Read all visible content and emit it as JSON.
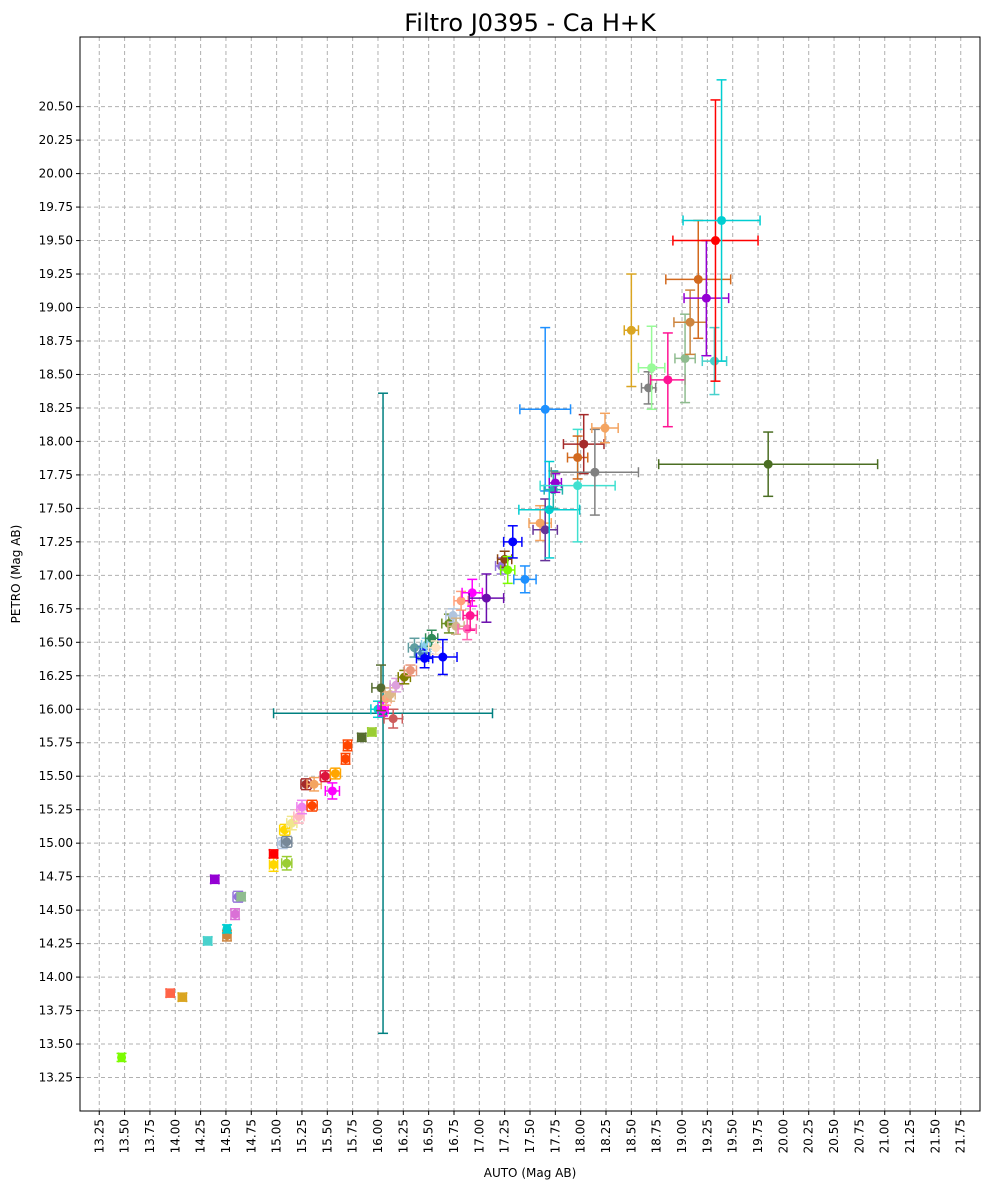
{
  "chart_data": {
    "type": "scatter",
    "title": "Filtro J0395 - Ca H+K",
    "xlabel": "AUTO (Mag AB)",
    "ylabel": "PETRO (Mag AB)",
    "xlim": [
      13.06,
      21.94
    ],
    "ylim": [
      13.0,
      21.02
    ],
    "xticks": [
      13.25,
      13.5,
      13.75,
      14.0,
      14.25,
      14.5,
      14.75,
      15.0,
      15.25,
      15.5,
      15.75,
      16.0,
      16.25,
      16.5,
      16.75,
      17.0,
      17.25,
      17.5,
      17.75,
      18.0,
      18.25,
      18.5,
      18.75,
      19.0,
      19.25,
      19.5,
      19.75,
      20.0,
      20.25,
      20.5,
      20.75,
      21.0,
      21.25,
      21.5,
      21.75
    ],
    "xtick_labels": [
      "13.25",
      "13.50",
      "13.75",
      "14.00",
      "14.25",
      "14.50",
      "14.75",
      "15.00",
      "15.25",
      "15.50",
      "15.75",
      "16.00",
      "16.25",
      "16.50",
      "16.75",
      "17.00",
      "17.25",
      "17.50",
      "17.75",
      "18.00",
      "18.25",
      "18.50",
      "18.75",
      "19.00",
      "19.25",
      "19.50",
      "19.75",
      "20.00",
      "20.25",
      "20.50",
      "20.75",
      "21.00",
      "21.25",
      "21.50",
      "21.75"
    ],
    "yticks": [
      13.25,
      13.5,
      13.75,
      14.0,
      14.25,
      14.5,
      14.75,
      15.0,
      15.25,
      15.5,
      15.75,
      16.0,
      16.25,
      16.5,
      16.75,
      17.0,
      17.25,
      17.5,
      17.75,
      18.0,
      18.25,
      18.5,
      18.75,
      19.0,
      19.25,
      19.5,
      19.75,
      20.0,
      20.25,
      20.5
    ],
    "ytick_labels": [
      "13.25",
      "13.50",
      "13.75",
      "14.00",
      "14.25",
      "14.50",
      "14.75",
      "15.00",
      "15.25",
      "15.50",
      "15.75",
      "16.00",
      "16.25",
      "16.50",
      "16.75",
      "17.00",
      "17.25",
      "17.50",
      "17.75",
      "18.00",
      "18.25",
      "18.50",
      "18.75",
      "19.00",
      "19.25",
      "19.50",
      "19.75",
      "20.00",
      "20.25",
      "20.50"
    ],
    "grid": true,
    "grid_style": "dashed",
    "points": [
      {
        "x": 13.47,
        "y": 13.4,
        "xerr": 0.03,
        "yerr": 0.03,
        "color": "#7cfc00"
      },
      {
        "x": 13.95,
        "y": 13.88,
        "xerr": 0.04,
        "yerr": 0.03,
        "color": "#ff6347"
      },
      {
        "x": 14.07,
        "y": 13.85,
        "xerr": 0.04,
        "yerr": 0.03,
        "color": "#daa520"
      },
      {
        "x": 14.32,
        "y": 14.27,
        "xerr": 0.04,
        "yerr": 0.03,
        "color": "#48d1cc"
      },
      {
        "x": 14.39,
        "y": 14.73,
        "xerr": 0.04,
        "yerr": 0.03,
        "color": "#9400d3"
      },
      {
        "x": 14.51,
        "y": 14.31,
        "xerr": 0.04,
        "yerr": 0.04,
        "color": "#cd853f"
      },
      {
        "x": 14.51,
        "y": 14.36,
        "xerr": 0.03,
        "yerr": 0.03,
        "color": "#00ced1"
      },
      {
        "x": 14.59,
        "y": 14.47,
        "xerr": 0.04,
        "yerr": 0.04,
        "color": "#da70d6"
      },
      {
        "x": 14.62,
        "y": 14.6,
        "xerr": 0.05,
        "yerr": 0.04,
        "color": "#9370db"
      },
      {
        "x": 14.65,
        "y": 14.6,
        "xerr": 0.04,
        "yerr": 0.03,
        "color": "#8fbc8f"
      },
      {
        "x": 14.97,
        "y": 14.84,
        "xerr": 0.04,
        "yerr": 0.05,
        "color": "#ffd700"
      },
      {
        "x": 14.97,
        "y": 14.92,
        "xerr": 0.04,
        "yerr": 0.03,
        "color": "#ff0000"
      },
      {
        "x": 15.06,
        "y": 15.0,
        "xerr": 0.05,
        "yerr": 0.04,
        "color": "#b0c4de"
      },
      {
        "x": 15.1,
        "y": 15.01,
        "xerr": 0.05,
        "yerr": 0.04,
        "color": "#778899"
      },
      {
        "x": 15.1,
        "y": 14.85,
        "xerr": 0.05,
        "yerr": 0.05,
        "color": "#9acd32"
      },
      {
        "x": 15.08,
        "y": 15.1,
        "xerr": 0.05,
        "yerr": 0.04,
        "color": "#ffd700"
      },
      {
        "x": 15.15,
        "y": 15.15,
        "xerr": 0.05,
        "yerr": 0.05,
        "color": "#f0e68c"
      },
      {
        "x": 15.22,
        "y": 15.2,
        "xerr": 0.05,
        "yerr": 0.05,
        "color": "#ffb6c1"
      },
      {
        "x": 15.25,
        "y": 15.27,
        "xerr": 0.05,
        "yerr": 0.05,
        "color": "#ee82ee"
      },
      {
        "x": 15.29,
        "y": 15.44,
        "xerr": 0.05,
        "yerr": 0.04,
        "color": "#a52a2a"
      },
      {
        "x": 15.35,
        "y": 15.28,
        "xerr": 0.05,
        "yerr": 0.04,
        "color": "#ff4500"
      },
      {
        "x": 15.37,
        "y": 15.44,
        "xerr": 0.07,
        "yerr": 0.05,
        "color": "#f4a460"
      },
      {
        "x": 15.48,
        "y": 15.5,
        "xerr": 0.05,
        "yerr": 0.04,
        "color": "#dc143c"
      },
      {
        "x": 15.58,
        "y": 15.52,
        "xerr": 0.05,
        "yerr": 0.04,
        "color": "#ffa500"
      },
      {
        "x": 15.55,
        "y": 15.39,
        "xerr": 0.07,
        "yerr": 0.06,
        "color": "#ff00ff"
      },
      {
        "x": 15.68,
        "y": 15.63,
        "xerr": 0.04,
        "yerr": 0.04,
        "color": "#ff4500"
      },
      {
        "x": 15.7,
        "y": 15.73,
        "xerr": 0.04,
        "yerr": 0.04,
        "color": "#ff4500"
      },
      {
        "x": 15.84,
        "y": 15.79,
        "xerr": 0.04,
        "yerr": 0.03,
        "color": "#556b2f"
      },
      {
        "x": 15.94,
        "y": 15.83,
        "xerr": 0.04,
        "yerr": 0.03,
        "color": "#9acd32"
      },
      {
        "x": 16.05,
        "y": 15.97,
        "xerr": 1.08,
        "yerr": 2.39,
        "color": "#008080"
      },
      {
        "x": 16.0,
        "y": 16.0,
        "xerr": 0.07,
        "yerr": 0.06,
        "color": "#00ced1"
      },
      {
        "x": 16.05,
        "y": 16.0,
        "xerr": 0.05,
        "yerr": 0.05,
        "color": "#ff00ff"
      },
      {
        "x": 16.08,
        "y": 16.08,
        "xerr": 0.05,
        "yerr": 0.05,
        "color": "#ffa07a"
      },
      {
        "x": 16.03,
        "y": 16.16,
        "xerr": 0.09,
        "yerr": 0.17,
        "color": "#556b2f"
      },
      {
        "x": 16.12,
        "y": 16.11,
        "xerr": 0.05,
        "yerr": 0.05,
        "color": "#deb887"
      },
      {
        "x": 16.15,
        "y": 15.93,
        "xerr": 0.09,
        "yerr": 0.07,
        "color": "#cd5c5c"
      },
      {
        "x": 16.18,
        "y": 16.18,
        "xerr": 0.06,
        "yerr": 0.05,
        "color": "#dda0dd"
      },
      {
        "x": 16.26,
        "y": 16.24,
        "xerr": 0.06,
        "yerr": 0.05,
        "color": "#808000"
      },
      {
        "x": 16.32,
        "y": 16.29,
        "xerr": 0.06,
        "yerr": 0.04,
        "color": "#e9967a"
      },
      {
        "x": 16.36,
        "y": 16.46,
        "xerr": 0.06,
        "yerr": 0.07,
        "color": "#5f9ea0"
      },
      {
        "x": 16.44,
        "y": 16.42,
        "xerr": 0.07,
        "yerr": 0.05,
        "color": "#4682b4"
      },
      {
        "x": 16.46,
        "y": 16.38,
        "xerr": 0.08,
        "yerr": 0.07,
        "color": "#0000ff"
      },
      {
        "x": 16.48,
        "y": 16.48,
        "xerr": 0.05,
        "yerr": 0.05,
        "color": "#87ceeb"
      },
      {
        "x": 16.53,
        "y": 16.53,
        "xerr": 0.06,
        "yerr": 0.06,
        "color": "#2e8b57"
      },
      {
        "x": 16.57,
        "y": 16.46,
        "xerr": 0.07,
        "yerr": 0.05,
        "color": "#ffe4c4"
      },
      {
        "x": 16.64,
        "y": 16.39,
        "xerr": 0.14,
        "yerr": 0.13,
        "color": "#0000ff"
      },
      {
        "x": 16.7,
        "y": 16.64,
        "xerr": 0.07,
        "yerr": 0.07,
        "color": "#6b8e23"
      },
      {
        "x": 16.74,
        "y": 16.7,
        "xerr": 0.07,
        "yerr": 0.05,
        "color": "#b0c4de"
      },
      {
        "x": 16.77,
        "y": 16.62,
        "xerr": 0.08,
        "yerr": 0.06,
        "color": "#d2b48c"
      },
      {
        "x": 16.82,
        "y": 16.81,
        "xerr": 0.07,
        "yerr": 0.07,
        "color": "#ffa07a"
      },
      {
        "x": 16.88,
        "y": 16.6,
        "xerr": 0.09,
        "yerr": 0.08,
        "color": "#ff69b4"
      },
      {
        "x": 16.91,
        "y": 16.7,
        "xerr": 0.07,
        "yerr": 0.11,
        "color": "#ff1493"
      },
      {
        "x": 16.93,
        "y": 16.87,
        "xerr": 0.1,
        "yerr": 0.1,
        "color": "#ff00ff"
      },
      {
        "x": 17.07,
        "y": 16.83,
        "xerr": 0.17,
        "yerr": 0.18,
        "color": "#6a0dad"
      },
      {
        "x": 17.22,
        "y": 17.07,
        "xerr": 0.06,
        "yerr": 0.06,
        "color": "#9370db"
      },
      {
        "x": 17.25,
        "y": 17.12,
        "xerr": 0.07,
        "yerr": 0.06,
        "color": "#8b4513"
      },
      {
        "x": 17.28,
        "y": 17.04,
        "xerr": 0.07,
        "yerr": 0.1,
        "color": "#7cfc00"
      },
      {
        "x": 17.33,
        "y": 17.25,
        "xerr": 0.09,
        "yerr": 0.12,
        "color": "#0000ff"
      },
      {
        "x": 17.45,
        "y": 16.97,
        "xerr": 0.11,
        "yerr": 0.1,
        "color": "#1e90ff"
      },
      {
        "x": 17.6,
        "y": 17.39,
        "xerr": 0.11,
        "yerr": 0.13,
        "color": "#f4a460"
      },
      {
        "x": 17.65,
        "y": 17.34,
        "xerr": 0.12,
        "yerr": 0.23,
        "color": "#663399"
      },
      {
        "x": 17.65,
        "y": 18.24,
        "xerr": 0.25,
        "yerr": 0.61,
        "color": "#1e90ff"
      },
      {
        "x": 17.69,
        "y": 17.49,
        "xerr": 0.3,
        "yerr": 0.36,
        "color": "#00ced1"
      },
      {
        "x": 17.73,
        "y": 17.64,
        "xerr": 0.09,
        "yerr": 0.14,
        "color": "#20b2aa"
      },
      {
        "x": 17.75,
        "y": 17.69,
        "xerr": 0.06,
        "yerr": 0.07,
        "color": "#9400d3"
      },
      {
        "x": 17.97,
        "y": 17.67,
        "xerr": 0.37,
        "yerr": 0.42,
        "color": "#40e0d0"
      },
      {
        "x": 17.97,
        "y": 17.88,
        "xerr": 0.1,
        "yerr": 0.16,
        "color": "#d2691e"
      },
      {
        "x": 18.03,
        "y": 17.98,
        "xerr": 0.2,
        "yerr": 0.22,
        "color": "#a52a2a"
      },
      {
        "x": 18.14,
        "y": 17.77,
        "xerr": 0.43,
        "yerr": 0.32,
        "color": "#808080"
      },
      {
        "x": 18.24,
        "y": 18.1,
        "xerr": 0.13,
        "yerr": 0.11,
        "color": "#f4a460"
      },
      {
        "x": 18.67,
        "y": 18.4,
        "xerr": 0.07,
        "yerr": 0.12,
        "color": "#808080"
      },
      {
        "x": 18.5,
        "y": 18.83,
        "xerr": 0.07,
        "yerr": 0.42,
        "color": "#daa520"
      },
      {
        "x": 18.7,
        "y": 18.55,
        "xerr": 0.13,
        "yerr": 0.31,
        "color": "#98fb98"
      },
      {
        "x": 18.86,
        "y": 18.46,
        "xerr": 0.17,
        "yerr": 0.35,
        "color": "#ff1493"
      },
      {
        "x": 19.03,
        "y": 18.62,
        "xerr": 0.1,
        "yerr": 0.33,
        "color": "#8fbc8f"
      },
      {
        "x": 19.08,
        "y": 18.89,
        "xerr": 0.16,
        "yerr": 0.24,
        "color": "#cd853f"
      },
      {
        "x": 19.16,
        "y": 19.21,
        "xerr": 0.32,
        "yerr": 0.44,
        "color": "#d2691e"
      },
      {
        "x": 19.24,
        "y": 19.07,
        "xerr": 0.22,
        "yerr": 0.43,
        "color": "#9400d3"
      },
      {
        "x": 19.32,
        "y": 18.6,
        "xerr": 0.12,
        "yerr": 0.25,
        "color": "#48d1cc"
      },
      {
        "x": 19.33,
        "y": 19.5,
        "xerr": 0.42,
        "yerr": 1.05,
        "color": "#ff0000"
      },
      {
        "x": 19.39,
        "y": 19.65,
        "xerr": 0.38,
        "yerr": 1.05,
        "color": "#00ced1"
      },
      {
        "x": 19.85,
        "y": 17.83,
        "xerr": 1.08,
        "yerr": 0.24,
        "color": "#4b6e23"
      }
    ]
  }
}
